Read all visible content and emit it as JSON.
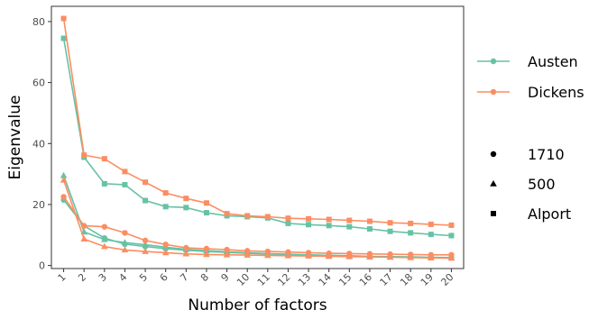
{
  "colors": {
    "Austen": "#66c2a5",
    "Dickens": "#fc8d62",
    "shape_key": "#000000"
  },
  "chart_data": {
    "type": "line",
    "xlabel": "Number of factors",
    "ylabel": "Eigenvalue",
    "x": [
      1,
      2,
      3,
      4,
      5,
      6,
      7,
      8,
      9,
      10,
      11,
      12,
      13,
      14,
      15,
      16,
      17,
      18,
      19,
      20
    ],
    "xlim": [
      0.4,
      20.6
    ],
    "ylim": [
      -1,
      85
    ],
    "yticks": [
      0,
      20,
      40,
      60,
      80
    ],
    "grid": false,
    "legend_color": {
      "title": "",
      "placement": "right",
      "entries": [
        "Austen",
        "Dickens"
      ]
    },
    "legend_shape": {
      "title": "",
      "placement": "right",
      "entries": [
        "1710",
        "500",
        "Alport"
      ]
    },
    "series": [
      {
        "author": "Austen",
        "method": "1710",
        "shape": "circle",
        "values": [
          21.5,
          13.0,
          9.0,
          7.0,
          6.2,
          5.5,
          5.0,
          4.6,
          4.3,
          4.0,
          3.8,
          3.6,
          3.4,
          3.3,
          3.2,
          3.0,
          2.9,
          2.8,
          2.7,
          2.6
        ]
      },
      {
        "author": "Austen",
        "method": "500",
        "shape": "triangle",
        "values": [
          29.5,
          11.0,
          8.5,
          7.5,
          6.8,
          6.0,
          5.3,
          4.9,
          4.5,
          4.2,
          3.9,
          3.7,
          3.5,
          3.3,
          3.1,
          2.9,
          2.8,
          2.7,
          2.6,
          2.5
        ]
      },
      {
        "author": "Austen",
        "method": "Alport",
        "shape": "square",
        "values": [
          74.5,
          35.5,
          26.8,
          26.5,
          21.3,
          19.3,
          19.0,
          17.3,
          16.3,
          16.0,
          15.6,
          13.8,
          13.4,
          13.1,
          12.7,
          12.0,
          11.2,
          10.7,
          10.2,
          9.8
        ]
      },
      {
        "author": "Dickens",
        "method": "1710",
        "shape": "circle",
        "values": [
          22.5,
          13.0,
          12.7,
          10.7,
          8.2,
          6.9,
          5.8,
          5.5,
          5.2,
          4.8,
          4.6,
          4.4,
          4.2,
          4.0,
          3.9,
          3.8,
          3.7,
          3.6,
          3.5,
          3.5
        ]
      },
      {
        "author": "Dickens",
        "method": "500",
        "shape": "triangle",
        "values": [
          28.0,
          8.7,
          6.2,
          5.1,
          4.6,
          4.2,
          3.8,
          3.6,
          3.5,
          3.4,
          3.3,
          3.2,
          3.1,
          3.0,
          2.9,
          2.8,
          2.7,
          2.6,
          2.5,
          2.4
        ]
      },
      {
        "author": "Dickens",
        "method": "Alport",
        "shape": "square",
        "values": [
          81.0,
          36.2,
          35.0,
          30.8,
          27.3,
          23.8,
          22.0,
          20.5,
          17.0,
          16.3,
          16.0,
          15.5,
          15.3,
          15.1,
          14.8,
          14.5,
          14.0,
          13.8,
          13.5,
          13.2
        ]
      }
    ]
  }
}
